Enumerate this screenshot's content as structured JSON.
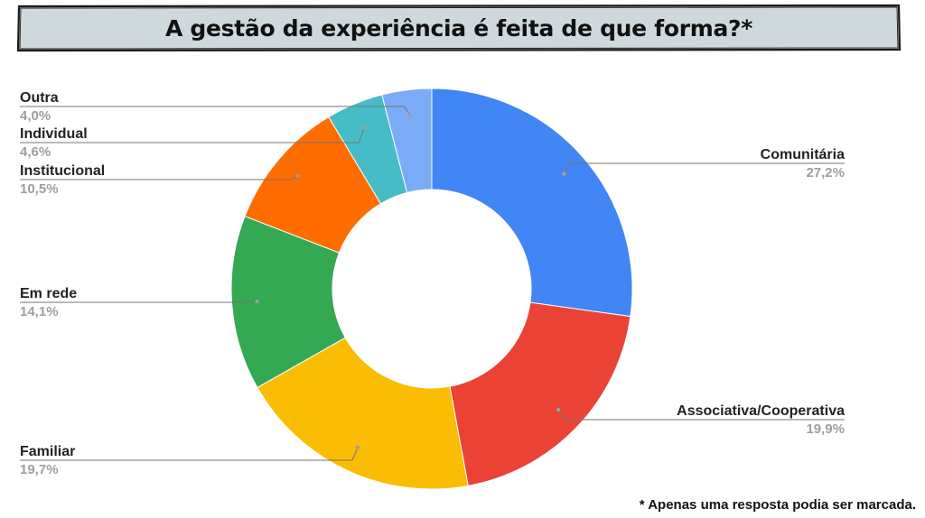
{
  "title": "A gestão da experiência é feita de que forma?*",
  "footnote": "* Apenas uma resposta podia ser marcada.",
  "colors": {
    "title_bg": "#cfd8dc",
    "label": "#222222",
    "percent": "#9e9e9e",
    "leader": "#757575"
  },
  "chart_data": {
    "type": "pie",
    "variant": "donut",
    "categories": [
      "Comunitária",
      "Associativa/Cooperativa",
      "Familiar",
      "Em rede",
      "Institucional",
      "Individual",
      "Outra"
    ],
    "values": [
      27.2,
      19.9,
      19.7,
      14.1,
      10.5,
      4.6,
      4.0
    ],
    "value_labels": [
      "27,2%",
      "19,9%",
      "19,7%",
      "14,1%",
      "10,5%",
      "4,6%",
      "4,0%"
    ],
    "colors": [
      "#4285f4",
      "#ea4335",
      "#fbbc04",
      "#34a853",
      "#ff6d01",
      "#46bdc6",
      "#7baaf7"
    ],
    "label_sides": [
      "right",
      "right",
      "left",
      "left",
      "left",
      "left",
      "left"
    ],
    "legend": "none"
  }
}
